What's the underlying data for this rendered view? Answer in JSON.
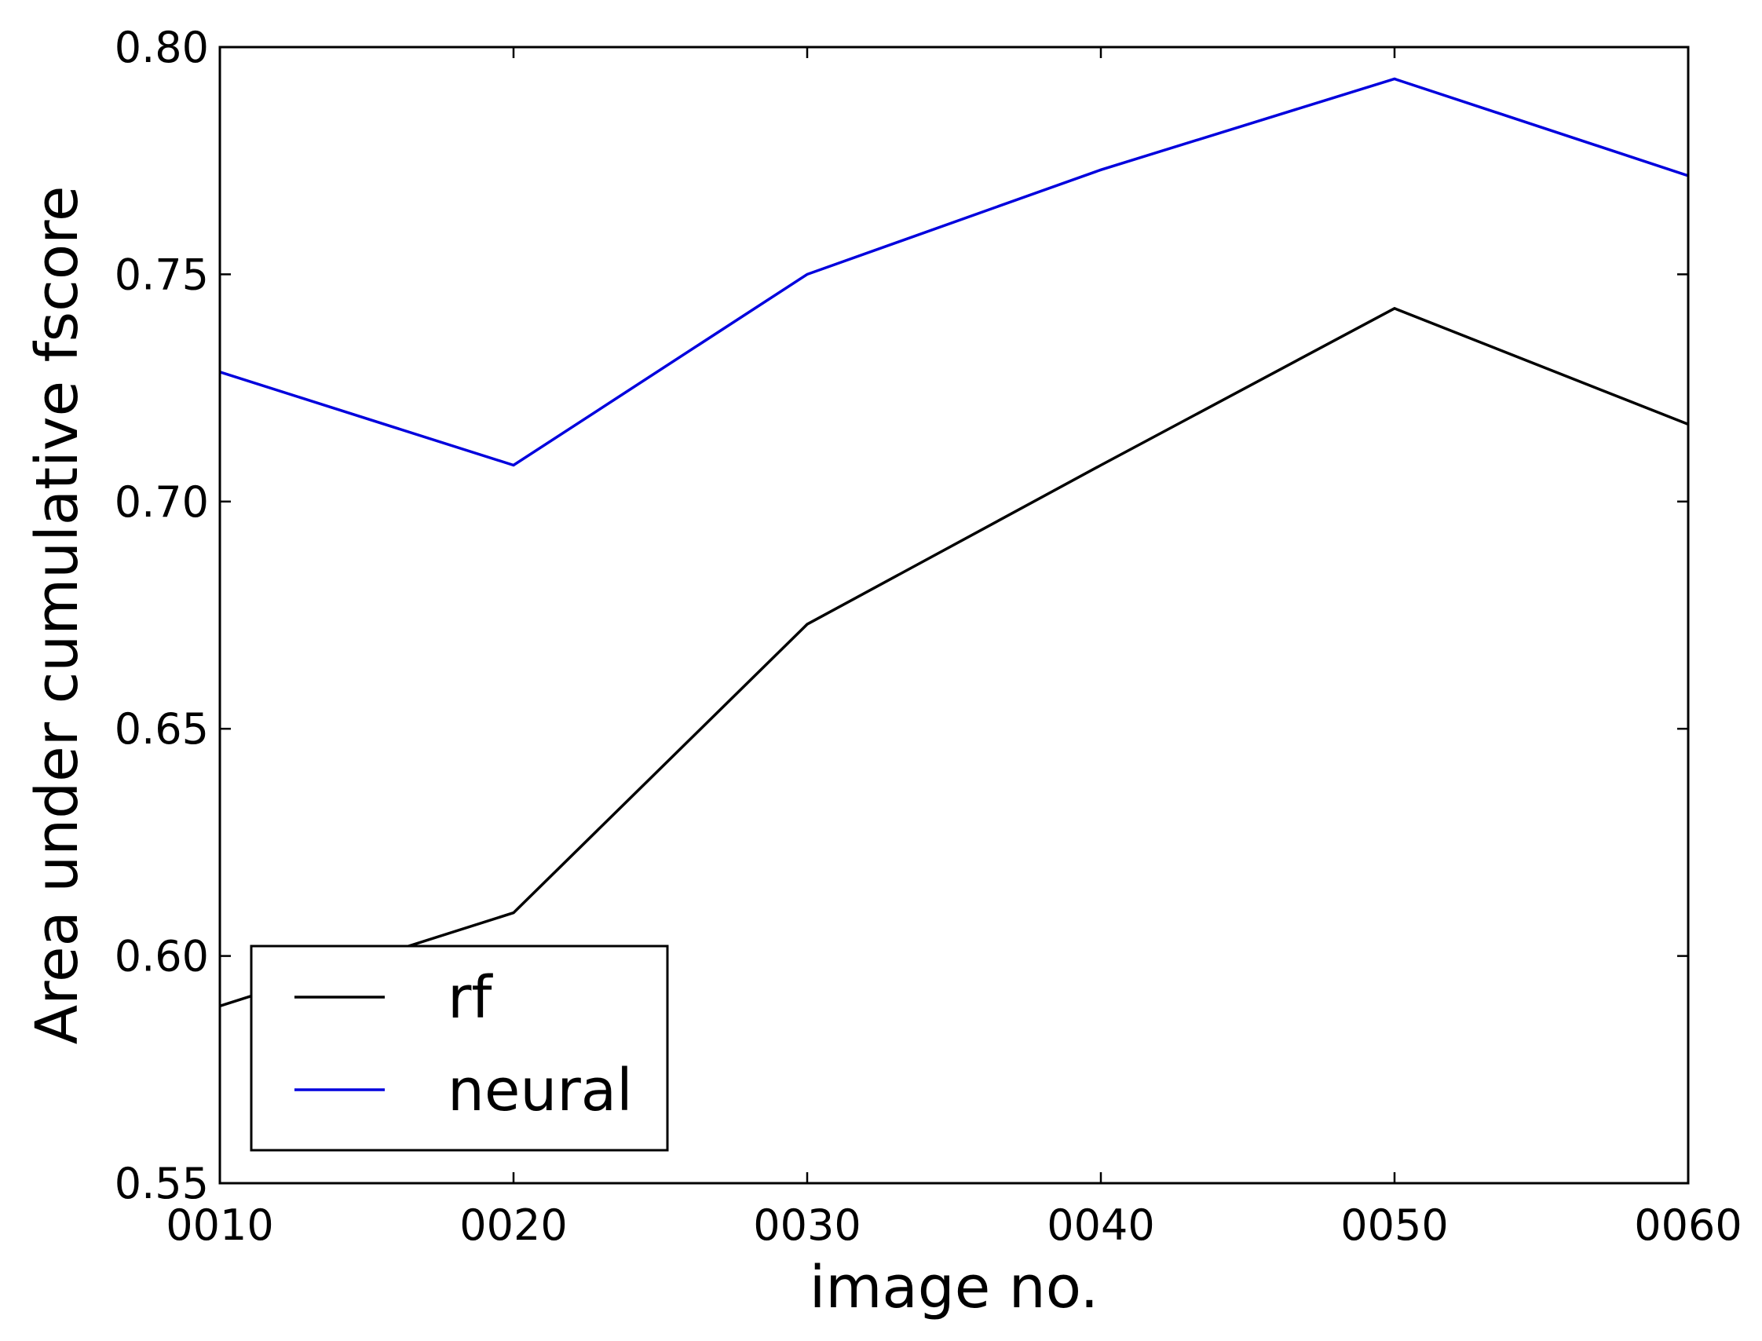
{
  "chart_data": {
    "type": "line",
    "title": "",
    "xlabel": "image no.",
    "ylabel": "Area under cumulative fscore",
    "x": [
      "0010",
      "0020",
      "0030",
      "0040",
      "0050",
      "0060"
    ],
    "xlim": [
      10,
      60
    ],
    "ylim": [
      0.55,
      0.8
    ],
    "xticks": [
      "0010",
      "0020",
      "0030",
      "0040",
      "0050",
      "0060"
    ],
    "yticks": [
      "0.55",
      "0.60",
      "0.65",
      "0.70",
      "0.75",
      "0.80"
    ],
    "grid": false,
    "legend_position": "lower-left",
    "series": [
      {
        "name": "rf",
        "color": "#000000",
        "values": [
          0.589,
          0.6095,
          0.673,
          0.708,
          0.7425,
          0.717
        ]
      },
      {
        "name": "neural",
        "color": "#0000dd",
        "values": [
          0.7285,
          0.708,
          0.75,
          0.773,
          0.793,
          0.7717
        ]
      }
    ]
  }
}
